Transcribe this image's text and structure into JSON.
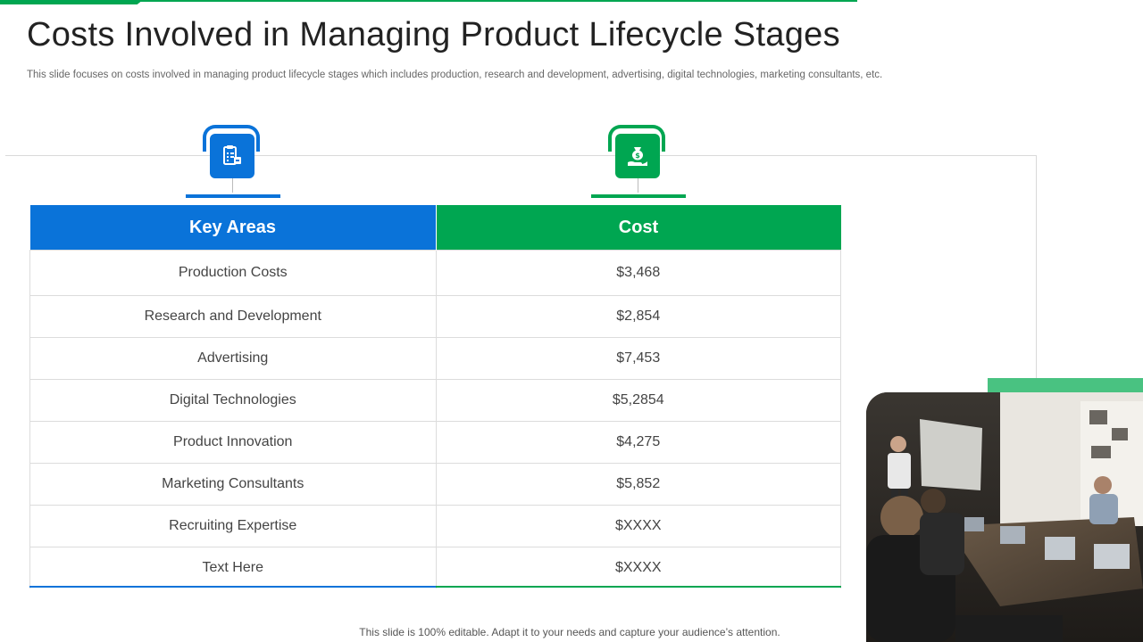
{
  "slide": {
    "title": "Costs Involved in Managing Product Lifecycle Stages",
    "subtitle": "This slide focuses on costs involved in managing product lifecycle stages which includes production, research and development, advertising, digital technologies, marketing consultants, etc.",
    "footer": "This slide is 100% editable. Adapt it to your needs and capture your audience’s attention."
  },
  "icons": {
    "left": "clipboard-icon",
    "right": "money-bag-hand-icon"
  },
  "table": {
    "headers": {
      "key_areas": "Key Areas",
      "cost": "Cost"
    },
    "rows": [
      {
        "area": "Production Costs",
        "cost": "$3,468"
      },
      {
        "area": "Research and Development",
        "cost": "$2,854"
      },
      {
        "area": "Advertising",
        "cost": "$7,453"
      },
      {
        "area": "Digital Technologies",
        "cost": "$5,2854"
      },
      {
        "area": "Product Innovation",
        "cost": "$4,275"
      },
      {
        "area": "Marketing Consultants",
        "cost": "$5,852"
      },
      {
        "area": "Recruiting Expertise",
        "cost": "$XXXX"
      },
      {
        "area": "Text Here",
        "cost": "$XXXX"
      }
    ]
  },
  "colors": {
    "blue": "#0a73d9",
    "green": "#00a651"
  }
}
